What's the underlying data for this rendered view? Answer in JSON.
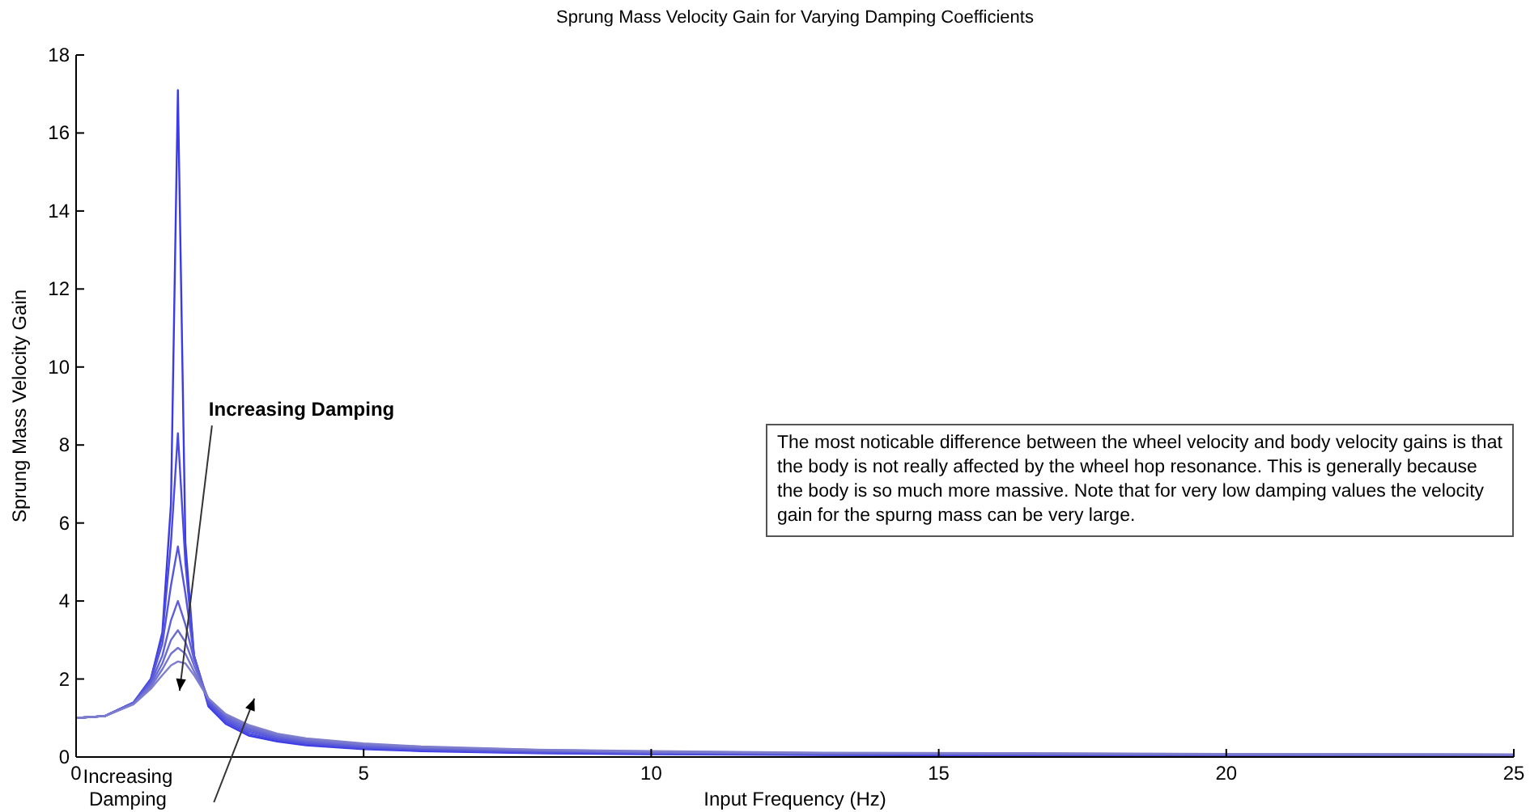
{
  "chart_data": {
    "type": "line",
    "title": "Sprung Mass Velocity Gain for Varying Damping Coefficients",
    "xlabel": "Input Frequency (Hz)",
    "ylabel": "Sprung Mass Velocity Gain",
    "x": [
      0,
      0.5,
      1,
      1.3,
      1.5,
      1.65,
      1.77,
      1.9,
      2.05,
      2.3,
      2.6,
      3,
      3.5,
      4,
      5,
      6,
      8,
      10,
      13,
      16,
      20,
      25
    ],
    "series": [
      {
        "color": "#3a3ae8",
        "values": [
          1,
          1.05,
          1.4,
          2.0,
          3.2,
          6.5,
          17.1,
          5.5,
          2.6,
          1.3,
          0.85,
          0.55,
          0.4,
          0.3,
          0.2,
          0.15,
          0.1,
          0.07,
          0.05,
          0.04,
          0.03,
          0.02
        ]
      },
      {
        "color": "#4a4ae0",
        "values": [
          1,
          1.05,
          1.4,
          2.0,
          3.1,
          5.5,
          8.3,
          5.0,
          2.6,
          1.35,
          0.9,
          0.6,
          0.43,
          0.33,
          0.22,
          0.17,
          0.11,
          0.08,
          0.06,
          0.05,
          0.04,
          0.03
        ]
      },
      {
        "color": "#5555dd",
        "values": [
          1,
          1.05,
          1.4,
          1.95,
          2.9,
          4.4,
          5.4,
          4.2,
          2.6,
          1.4,
          0.95,
          0.65,
          0.47,
          0.36,
          0.25,
          0.19,
          0.13,
          0.1,
          0.07,
          0.06,
          0.05,
          0.04
        ]
      },
      {
        "color": "#5f5fd8",
        "values": [
          1,
          1.05,
          1.38,
          1.9,
          2.6,
          3.5,
          4.0,
          3.4,
          2.5,
          1.45,
          1.0,
          0.7,
          0.5,
          0.39,
          0.27,
          0.21,
          0.15,
          0.11,
          0.08,
          0.07,
          0.06,
          0.05
        ]
      },
      {
        "color": "#6a6ad4",
        "values": [
          1,
          1.05,
          1.37,
          1.85,
          2.4,
          3.0,
          3.25,
          2.95,
          2.35,
          1.5,
          1.05,
          0.74,
          0.54,
          0.42,
          0.3,
          0.23,
          0.16,
          0.12,
          0.09,
          0.08,
          0.06,
          0.05
        ]
      },
      {
        "color": "#7474d0",
        "values": [
          1,
          1.05,
          1.36,
          1.8,
          2.25,
          2.65,
          2.8,
          2.65,
          2.2,
          1.5,
          1.08,
          0.78,
          0.57,
          0.45,
          0.32,
          0.25,
          0.18,
          0.14,
          0.1,
          0.09,
          0.07,
          0.06
        ]
      },
      {
        "color": "#7e7ecc",
        "values": [
          1,
          1.05,
          1.35,
          1.75,
          2.1,
          2.35,
          2.45,
          2.4,
          2.1,
          1.5,
          1.1,
          0.82,
          0.6,
          0.48,
          0.35,
          0.27,
          0.19,
          0.15,
          0.11,
          0.1,
          0.08,
          0.07
        ]
      }
    ],
    "xlim": [
      0,
      25
    ],
    "xticks": [
      0,
      5,
      10,
      15,
      20,
      25
    ],
    "ylim": [
      0,
      18
    ],
    "yticks": [
      0,
      2,
      4,
      6,
      8,
      10,
      12,
      14,
      16,
      18
    ],
    "grid": false,
    "marker": "none",
    "line_style": "solid",
    "annotations": [
      "Increasing Damping",
      "Increasing Damping",
      "The most noticable difference between the wheel velocity and body velocity gains is that the body is not really affected by the wheel hop resonance. This is generally because the body is so much more massive.  Note that for very low damping values the velocity gain for the spurng mass can be very large."
    ]
  }
}
